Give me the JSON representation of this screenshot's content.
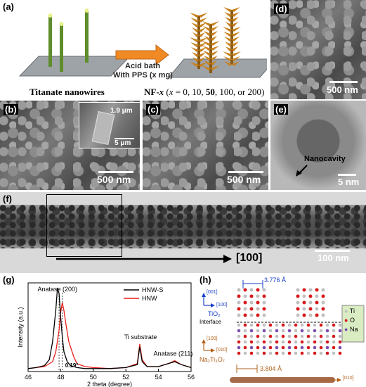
{
  "panels": {
    "a": {
      "label": "(a)",
      "arrow_line1": "Acid bath",
      "arrow_line2": "With PPS (x mg)",
      "caption_left": "Titanate nanowires",
      "caption_right_pre": "NF-",
      "caption_right_x": "x",
      "caption_right_mid": " (",
      "caption_right_x2": "x",
      "caption_right_vals": " = 0, 10, ",
      "caption_right_bold": "50",
      "caption_right_end": ", 100, or 200)"
    },
    "b": {
      "label": "(b)",
      "scale": "500 nm",
      "inset_scale1": "1.9 μm",
      "inset_scale2": "5 μm"
    },
    "c": {
      "label": "(c)",
      "scale": "500 nm"
    },
    "d": {
      "label": "(d)",
      "scale": "500 nm"
    },
    "e": {
      "label": "(e)",
      "annotation": "Nanocavity",
      "scale": "5 nm"
    },
    "f": {
      "label": "(f)",
      "direction": "[100]",
      "scale": "100 nm"
    },
    "g": {
      "label": "(g)",
      "peak1": "Anatase (200)",
      "peak2": "Ti substrate",
      "peak3": "Anatase (211)",
      "shift": "0.19°"
    },
    "h": {
      "label": "(h)",
      "lattice_top": "3.776 Å",
      "lattice_bottom": "3.804 Å",
      "axis_top_a": "[001]",
      "axis_top_b": "[100]",
      "phase_top": "TiO₂",
      "interface": "Interface",
      "axis_bot_a": "[100]",
      "axis_bot_b": "[010]",
      "phase_bot": "Na₂Ti₃O₇",
      "bar_dir": "[010]",
      "legend": [
        "Ti",
        "O",
        "Na"
      ]
    }
  },
  "colors": {
    "hnw_s": "#000000",
    "hnw": "#e8201a",
    "ti": "#c0c0c0",
    "o": "#d7191c",
    "na": "#7b4fb0",
    "arrow": "#f08a24",
    "wire": "#5f8d2b",
    "flower": "#c8821e"
  },
  "chart_data": {
    "type": "line",
    "xlabel": "2 theta (degree)",
    "ylabel": "Intensity (a.u.)",
    "xlim": [
      46,
      56
    ],
    "x_ticks": [
      46,
      48,
      50,
      52,
      54,
      56
    ],
    "grid": false,
    "legend_position": "top-right",
    "series": [
      {
        "name": "HNW-S",
        "color": "#000000",
        "x": [
          46.0,
          46.5,
          47.0,
          47.3,
          47.5,
          47.7,
          47.8,
          47.9,
          48.0,
          48.1,
          48.2,
          48.4,
          48.6,
          49.0,
          49.5,
          50.0,
          51.0,
          52.0,
          52.7,
          52.85,
          53.0,
          53.3,
          54.0,
          54.6,
          55.0,
          55.4,
          56.0
        ],
        "y": [
          0.03,
          0.04,
          0.06,
          0.12,
          0.3,
          0.62,
          0.85,
          0.79,
          0.55,
          0.35,
          0.2,
          0.1,
          0.06,
          0.04,
          0.03,
          0.03,
          0.03,
          0.04,
          0.07,
          0.25,
          0.1,
          0.05,
          0.05,
          0.08,
          0.1,
          0.07,
          0.04
        ]
      },
      {
        "name": "HNW",
        "color": "#e8201a",
        "x": [
          46.0,
          46.5,
          47.0,
          47.5,
          47.7,
          47.9,
          48.0,
          48.1,
          48.2,
          48.3,
          48.5,
          48.8,
          49.0,
          49.5,
          50.0,
          51.0,
          52.0,
          52.7,
          52.85,
          53.0,
          53.3,
          54.0,
          54.6,
          55.0,
          55.4,
          56.0
        ],
        "y": [
          0.03,
          0.04,
          0.05,
          0.1,
          0.2,
          0.42,
          0.6,
          0.7,
          0.62,
          0.5,
          0.3,
          0.15,
          0.08,
          0.05,
          0.04,
          0.03,
          0.04,
          0.08,
          0.28,
          0.12,
          0.05,
          0.05,
          0.08,
          0.11,
          0.07,
          0.04
        ]
      }
    ],
    "peak_lines": [
      47.9,
      48.09
    ]
  }
}
